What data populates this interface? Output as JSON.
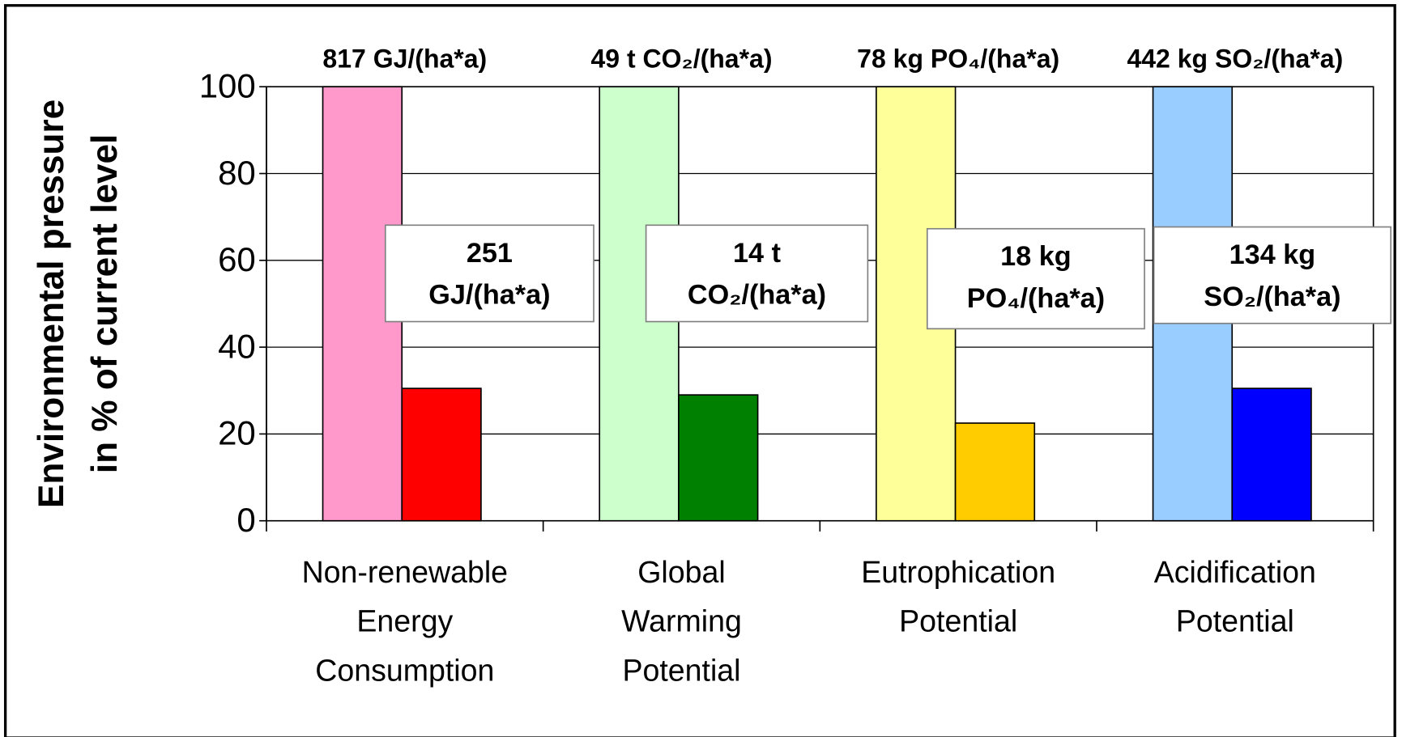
{
  "chart_data": {
    "type": "bar",
    "y_axis_label": [
      "Environmental pressure",
      "in % of current level"
    ],
    "categories": [
      [
        "Non-renewable",
        "Energy",
        "Consumption"
      ],
      [
        "Global",
        "Warming",
        "Potential"
      ],
      [
        "Eutrophication",
        "Potential"
      ],
      [
        "Acidification",
        "Potential"
      ]
    ],
    "series": [
      {
        "colors": [
          "#ff99cc",
          "#ccffcc",
          "#ffff99",
          "#99ccff"
        ],
        "values": [
          100,
          100,
          100,
          100
        ],
        "value_labels": [
          "817 GJ/(ha*a)",
          "49 t CO₂/(ha*a)",
          "78 kg PO₄/(ha*a)",
          "442 kg SO₂/(ha*a)"
        ]
      },
      {
        "colors": [
          "#ff0000",
          "#008000",
          "#ffcc00",
          "#0000ff"
        ],
        "values": [
          30.5,
          29,
          22.5,
          30.5
        ],
        "value_labels": [
          [
            "251",
            "GJ/(ha*a)"
          ],
          [
            "14 t",
            "CO₂/(ha*a)"
          ],
          [
            "18 kg",
            "PO₄/(ha*a)"
          ],
          [
            "134 kg",
            "SO₂/(ha*a)"
          ]
        ]
      }
    ],
    "ylim": [
      0,
      100
    ],
    "yticks": [
      0,
      20,
      40,
      60,
      80,
      100
    ],
    "grid": true
  }
}
